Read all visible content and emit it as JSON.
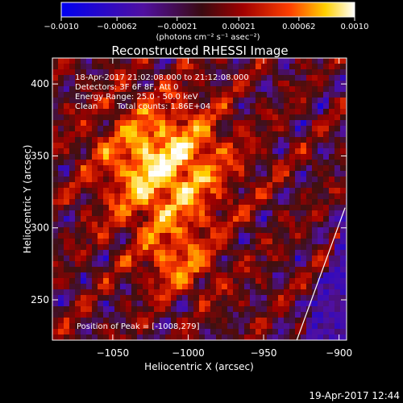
{
  "chart_data": {
    "type": "heatmap",
    "title": "Reconstructed RHESSI Image",
    "xlabel": "Heliocentric X (arcsec)",
    "ylabel": "Heliocentric Y (arcsec)",
    "xlim": [
      -1090,
      -895
    ],
    "ylim": [
      222,
      418
    ],
    "x_ticks": [
      -1050,
      -1000,
      -950,
      -900
    ],
    "x_tick_labels": [
      "−1050",
      "−1000",
      "−950",
      "−900"
    ],
    "y_ticks": [
      250,
      300,
      350,
      400
    ],
    "y_tick_labels": [
      "250",
      "300",
      "350",
      "400"
    ],
    "colorbar": {
      "min": -0.001,
      "max": 0.001,
      "ticks": [
        -0.001,
        -0.00062,
        -0.00021,
        0.00021,
        0.00062,
        0.001
      ],
      "tick_labels": [
        "−0.0010",
        "−0.00062",
        "−0.00021",
        "0.00021",
        "0.00062",
        "0.0010"
      ],
      "units": "(photons cm⁻² s⁻¹ asec⁻²)",
      "colors": [
        "#0000f0",
        "#5010a0",
        "#401010",
        "#a00000",
        "#ff4000",
        "#ffd000",
        "#ffffff"
      ]
    },
    "annotations": [
      "18-Apr-2017 21:02:08.000 to 21:12:08.000",
      "Detectors: 3F 6F 8F, Att 0",
      "Energy Range: 25.0 - 50.0 keV",
      "Clean",
      "Total counts: 1.86E+04"
    ],
    "peak_label": "Position of Peak = [-1008,279]",
    "peak": {
      "x": -1008,
      "y": 279
    },
    "limb_line": [
      {
        "x": -928,
        "y": 222
      },
      {
        "x": -896,
        "y": 314
      }
    ],
    "grid": false
  },
  "footer": {
    "timestamp": "19-Apr-2017 12:44"
  }
}
